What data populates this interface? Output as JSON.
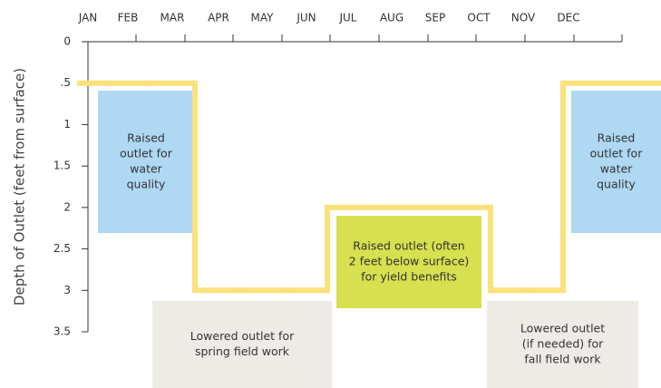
{
  "chart_data": {
    "type": "step",
    "y_label": "Depth of Outlet (feet from surface)",
    "categories": [
      "JAN",
      "FEB",
      "MAR",
      "APR",
      "MAY",
      "JUN",
      "JUL",
      "AUG",
      "SEP",
      "OCT",
      "NOV",
      "DEC"
    ],
    "values": [
      0.5,
      0.5,
      0.5,
      3,
      3,
      3,
      2,
      2,
      2,
      3,
      3,
      0.5
    ],
    "color": "#fbe17b",
    "ylim": [
      0,
      3.5
    ],
    "y_inverted": true,
    "yticks": [
      0,
      {
        "value": 0.5,
        "label": ".5"
      },
      1,
      1.5,
      2,
      2.5,
      3,
      3.5
    ],
    "annotations": [
      {
        "lines": [
          "Raised",
          "outlet for",
          "water",
          "quality"
        ],
        "color": "#afd8f3"
      },
      {
        "lines": [
          "Lowered outlet for",
          "spring field work"
        ],
        "color": "#eeebe6"
      },
      {
        "lines": [
          "Raised outlet (often",
          "2 feet below surface)",
          "for yield benefits"
        ],
        "color": "#d7e04f"
      },
      {
        "lines": [
          "Lowered outlet",
          "(if needed) for",
          "fall field work"
        ],
        "color": "#eeebe6"
      },
      {
        "lines": [
          "Raised",
          "outlet for",
          "water",
          "quality"
        ],
        "color": "#afd8f3"
      }
    ]
  }
}
